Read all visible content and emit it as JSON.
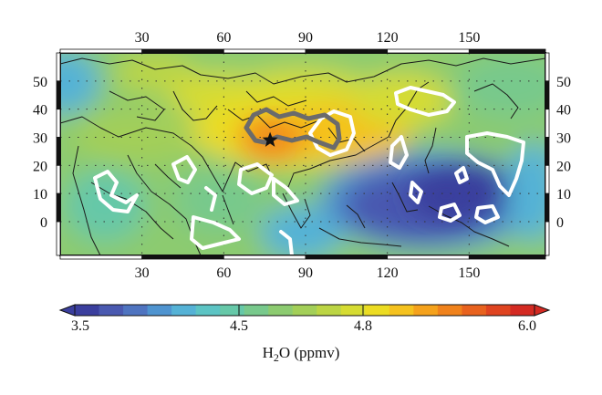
{
  "map": {
    "top_ticks": [
      "30",
      "60",
      "90",
      "120",
      "150"
    ],
    "bottom_ticks": [
      "30",
      "60",
      "90",
      "120",
      "150"
    ],
    "lon_values": [
      30,
      60,
      90,
      120,
      150
    ],
    "left_ticks": [
      "50",
      "40",
      "30",
      "20",
      "10",
      "0"
    ],
    "right_ticks": [
      "50",
      "40",
      "30",
      "20",
      "10",
      "0"
    ],
    "lat_values": [
      50,
      40,
      30,
      20,
      10,
      0
    ],
    "lon_range": [
      0,
      178
    ],
    "lat_range": [
      -12,
      60
    ],
    "grid": "dotted",
    "marker": {
      "icon": "star-icon",
      "lon": 77,
      "lat": 29
    },
    "contours": {
      "high_terrain_color": "#6b6b6b",
      "outline_color": "#ffffff"
    }
  },
  "colorbar": {
    "labels": [
      "3.5",
      "4.5",
      "4.8",
      "6.0"
    ],
    "title_main": "H",
    "title_sub": "2",
    "title_rest": "O (ppmv)",
    "colors": [
      "#3b3f9e",
      "#4a59b0",
      "#4f74c0",
      "#4f94d0",
      "#55b2d6",
      "#5cc4c4",
      "#66c8a8",
      "#78c98c",
      "#8ccb70",
      "#a3cf58",
      "#bcd544",
      "#d6dc32",
      "#ecdc22",
      "#f5c21e",
      "#f5a21c",
      "#f0821c",
      "#e8621e",
      "#df4420",
      "#d42a22"
    ]
  }
}
